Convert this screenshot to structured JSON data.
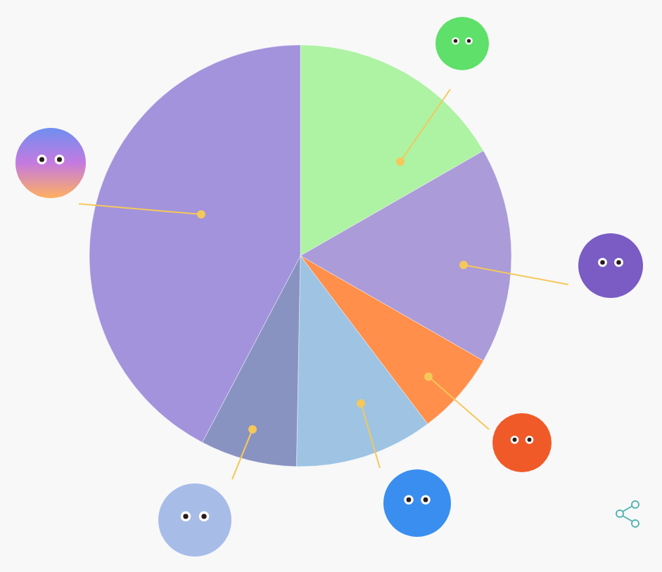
{
  "chart_data": {
    "type": "pie",
    "values": [
      16.7,
      16.6,
      6.4,
      10.6,
      7.4,
      42.3
    ],
    "colors": [
      "#aef2a4",
      "#ab9bd8",
      "#ff8f4a",
      "#9ec3e3",
      "#8893c2",
      "#a293dc"
    ]
  }
}
